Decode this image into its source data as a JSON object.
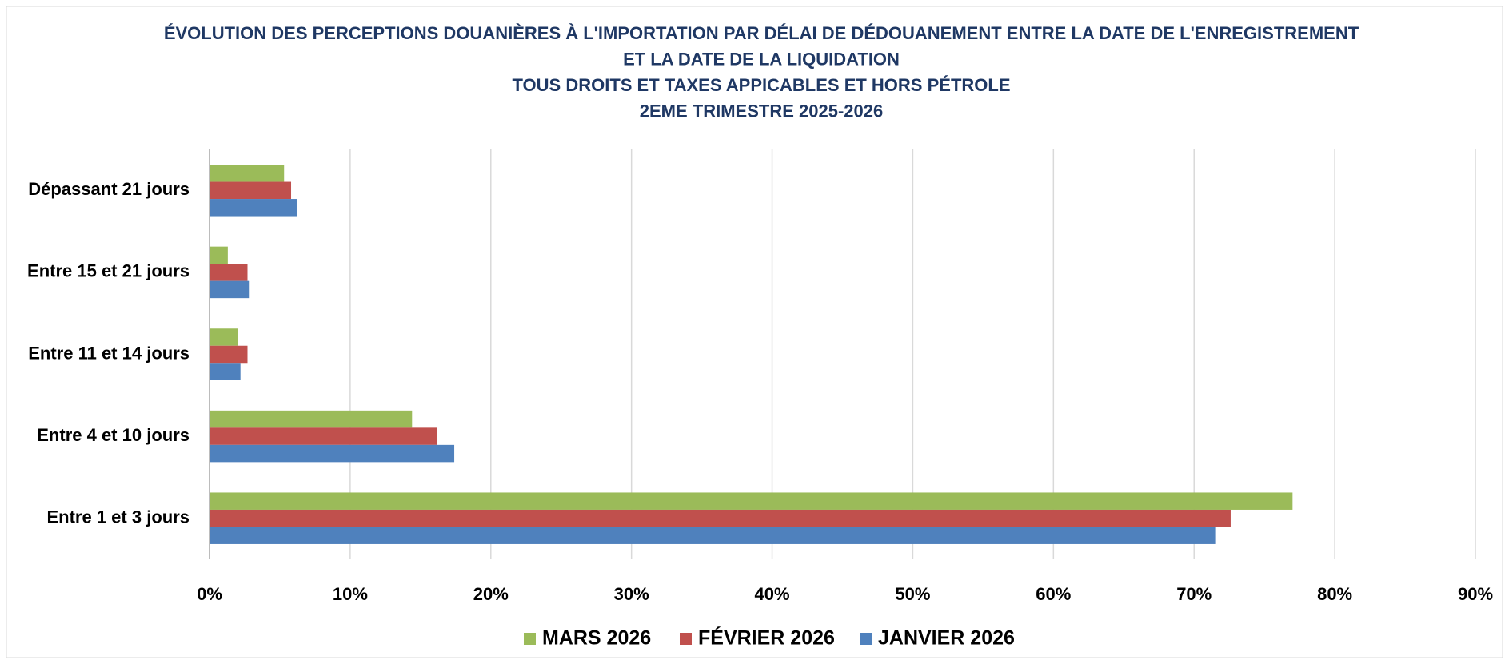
{
  "chart_data": {
    "type": "bar",
    "orientation": "horizontal",
    "title": [
      "ÉVOLUTION DES PERCEPTIONS DOUANIÈRES À L'IMPORTATION PAR DÉLAI DE DÉDOUANEMENT ENTRE LA DATE DE L'ENREGISTREMENT",
      "ET LA DATE DE LA LIQUIDATION",
      "TOUS DROITS ET TAXES APPICABLES ET HORS PÉTROLE",
      "2EME TRIMESTRE 2025-2026"
    ],
    "categories": [
      "Entre 1 et 3 jours",
      "Entre 4 et 10 jours",
      "Entre 11 et 14 jours",
      "Entre 15 et 21 jours",
      "Dépassant 21 jours"
    ],
    "series": [
      {
        "name": "MARS 2026",
        "color": "#9bbb59",
        "values": [
          77.0,
          14.4,
          2.0,
          1.3,
          5.3
        ]
      },
      {
        "name": "FÉVRIER 2026",
        "color": "#c0504d",
        "values": [
          72.6,
          16.2,
          2.7,
          2.7,
          5.8
        ]
      },
      {
        "name": "JANVIER 2026",
        "color": "#4f81bd",
        "values": [
          71.5,
          17.4,
          2.2,
          2.8,
          6.2
        ]
      }
    ],
    "xlim": [
      0,
      90
    ],
    "xticks": [
      {
        "value": 0,
        "label": "0%"
      },
      {
        "value": 10,
        "label": "10%"
      },
      {
        "value": 20,
        "label": "20%"
      },
      {
        "value": 30,
        "label": "30%"
      },
      {
        "value": 40,
        "label": "40%"
      },
      {
        "value": 50,
        "label": "50%"
      },
      {
        "value": 60,
        "label": "60%"
      },
      {
        "value": 70,
        "label": "70%"
      },
      {
        "value": 80,
        "label": "80%"
      },
      {
        "value": 90,
        "label": "90%"
      }
    ],
    "grid": true,
    "legend": "bottom"
  }
}
